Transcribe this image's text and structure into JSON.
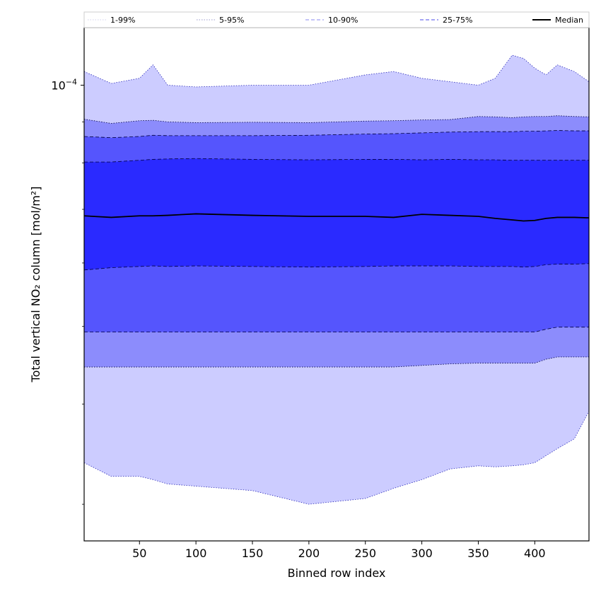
{
  "chart_data": {
    "type": "area",
    "title": "",
    "xlabel": "Binned row index",
    "ylabel": "Total vertical NO₂ column [mol/m²]",
    "xlim": [
      1,
      448
    ],
    "ylim": [
      2.7e-05,
      0.000118
    ],
    "yscale": "log",
    "grid": false,
    "legend_position": "top",
    "x_ticks": [
      50,
      100,
      150,
      200,
      250,
      300,
      350,
      400
    ],
    "x_tick_labels": [
      "50",
      "100",
      "150",
      "200",
      "250",
      "300",
      "350",
      "400"
    ],
    "y_ticks": [
      0.0001
    ],
    "y_tick_labels": [
      "10⁻⁴"
    ],
    "x": [
      1,
      25,
      50,
      62,
      75,
      100,
      150,
      200,
      250,
      275,
      300,
      325,
      350,
      365,
      380,
      390,
      400,
      410,
      420,
      435,
      448
    ],
    "series": [
      {
        "name": "1-99%",
        "style": "dotted",
        "color": "#b8b8e8",
        "lower": [
          3.38e-05,
          3.25e-05,
          3.25e-05,
          3.22e-05,
          3.18e-05,
          3.16e-05,
          3.12e-05,
          3e-05,
          3.05e-05,
          3.14e-05,
          3.22e-05,
          3.32e-05,
          3.35e-05,
          3.34e-05,
          3.35e-05,
          3.36e-05,
          3.38e-05,
          3.45e-05,
          3.52e-05,
          3.62e-05,
          3.92e-05
        ],
        "upper": [
          0.000104,
          0.0001005,
          0.000102,
          0.000106,
          0.0001,
          9.95e-05,
          0.0001,
          0.0001,
          0.000103,
          0.000104,
          0.000102,
          0.000101,
          0.0001,
          0.000102,
          0.000109,
          0.000108,
          0.000105,
          0.000103,
          0.000106,
          0.000104,
          0.000101
        ]
      },
      {
        "name": "5-95%",
        "style": "dotted",
        "color": "#7070d8",
        "lower": [
          4.45e-05,
          4.45e-05,
          4.45e-05,
          4.45e-05,
          4.45e-05,
          4.45e-05,
          4.45e-05,
          4.45e-05,
          4.45e-05,
          4.45e-05,
          4.47e-05,
          4.49e-05,
          4.5e-05,
          4.5e-05,
          4.5e-05,
          4.5e-05,
          4.5e-05,
          4.55e-05,
          4.58e-05,
          4.58e-05,
          4.58e-05
        ],
        "upper": [
          9.07e-05,
          8.96e-05,
          9.03e-05,
          9.04e-05,
          9e-05,
          8.98e-05,
          8.99e-05,
          8.98e-05,
          9.02e-05,
          9.03e-05,
          9.05e-05,
          9.06e-05,
          9.14e-05,
          9.13e-05,
          9.11e-05,
          9.13e-05,
          9.14e-05,
          9.14e-05,
          9.16e-05,
          9.14e-05,
          9.13e-05
        ]
      },
      {
        "name": "10-90%",
        "style": "dashed",
        "color": "#8d8df8",
        "lower": [
          4.92e-05,
          4.92e-05,
          4.92e-05,
          4.92e-05,
          4.92e-05,
          4.92e-05,
          4.92e-05,
          4.92e-05,
          4.92e-05,
          4.92e-05,
          4.92e-05,
          4.92e-05,
          4.92e-05,
          4.92e-05,
          4.92e-05,
          4.92e-05,
          4.92e-05,
          4.96e-05,
          4.99e-05,
          4.99e-05,
          4.99e-05
        ],
        "upper": [
          8.63e-05,
          8.6e-05,
          8.63e-05,
          8.66e-05,
          8.65e-05,
          8.65e-05,
          8.65e-05,
          8.66e-05,
          8.69e-05,
          8.7e-05,
          8.72e-05,
          8.74e-05,
          8.75e-05,
          8.75e-05,
          8.75e-05,
          8.76e-05,
          8.76e-05,
          8.77e-05,
          8.78e-05,
          8.77e-05,
          8.77e-05
        ]
      },
      {
        "name": "25-75%",
        "style": "dashed",
        "color": "#5050ff",
        "lower": [
          5.88e-05,
          5.92e-05,
          5.94e-05,
          5.95e-05,
          5.94e-05,
          5.95e-05,
          5.94e-05,
          5.93e-05,
          5.94e-05,
          5.95e-05,
          5.95e-05,
          5.95e-05,
          5.94e-05,
          5.94e-05,
          5.94e-05,
          5.93e-05,
          5.94e-05,
          5.97e-05,
          5.98e-05,
          5.98e-05,
          5.99e-05
        ],
        "upper": [
          8.02e-05,
          8.02e-05,
          8.06e-05,
          8.08e-05,
          8.09e-05,
          8.1e-05,
          8.08e-05,
          8.07e-05,
          8.08e-05,
          8.08e-05,
          8.07e-05,
          8.08e-05,
          8.07e-05,
          8.07e-05,
          8.06e-05,
          8.06e-05,
          8.06e-05,
          8.06e-05,
          8.06e-05,
          8.06e-05,
          8.06e-05
        ]
      },
      {
        "name": "Median",
        "style": "solid",
        "color": "#000000",
        "values": [
          6.87e-05,
          6.84e-05,
          6.87e-05,
          6.87e-05,
          6.88e-05,
          6.91e-05,
          6.88e-05,
          6.86e-05,
          6.86e-05,
          6.84e-05,
          6.9e-05,
          6.88e-05,
          6.86e-05,
          6.82e-05,
          6.79e-05,
          6.77e-05,
          6.78e-05,
          6.82e-05,
          6.84e-05,
          6.84e-05,
          6.83e-05
        ]
      }
    ],
    "band_fill_colors": [
      "#ccccff",
      "#8c8cfc",
      "#5555fd",
      "#2a2aff"
    ]
  }
}
